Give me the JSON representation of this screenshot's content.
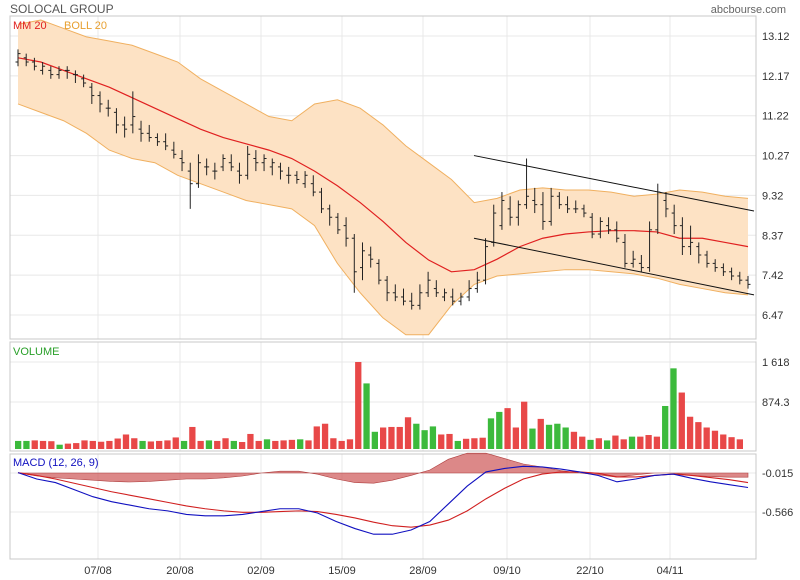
{
  "header": {
    "title": "SOLOCAL GROUP",
    "source": "abcbourse.com"
  },
  "colors": {
    "band_fill": "#fde2c4",
    "band_line": "#f0b060",
    "ma_line": "#e02020",
    "candle": "#222222",
    "channel": "#111111",
    "vol_up": "#3cba3c",
    "vol_down": "#e84848",
    "macd_line": "#1010c0",
    "signal_line": "#d02020",
    "macd_hist": "#d06060",
    "grid": "#e8e8e8",
    "border": "#c8c8c8"
  },
  "chart_data": [
    {
      "type": "line",
      "panel": "price",
      "legend": [
        "MM 20",
        "BOLL 20"
      ],
      "x_ticks": [
        "07/08",
        "20/08",
        "02/09",
        "15/09",
        "28/09",
        "09/10",
        "22/10",
        "04/11"
      ],
      "y_ticks": [
        13.12,
        12.17,
        11.22,
        10.27,
        9.32,
        8.37,
        7.42,
        6.47
      ],
      "ylim": [
        6.0,
        13.5
      ],
      "ohlc": [
        [
          12.5,
          12.8,
          12.4,
          12.7
        ],
        [
          12.6,
          12.7,
          12.4,
          12.5
        ],
        [
          12.5,
          12.6,
          12.3,
          12.4
        ],
        [
          12.3,
          12.5,
          12.2,
          12.4
        ],
        [
          12.3,
          12.4,
          12.1,
          12.2
        ],
        [
          12.2,
          12.4,
          12.1,
          12.3
        ],
        [
          12.3,
          12.4,
          12.1,
          12.3
        ],
        [
          12.2,
          12.3,
          12.0,
          12.2
        ],
        [
          12.1,
          12.2,
          11.9,
          12.0
        ],
        [
          11.9,
          12.0,
          11.5,
          11.7
        ],
        [
          11.7,
          11.8,
          11.3,
          11.5
        ],
        [
          11.4,
          11.6,
          11.2,
          11.4
        ],
        [
          11.3,
          11.4,
          10.8,
          11.0
        ],
        [
          11.0,
          11.2,
          10.7,
          10.9
        ],
        [
          11.0,
          11.8,
          10.8,
          11.2
        ],
        [
          10.9,
          11.1,
          10.6,
          10.8
        ],
        [
          10.8,
          11.0,
          10.6,
          10.7
        ],
        [
          10.7,
          10.8,
          10.5,
          10.6
        ],
        [
          10.6,
          10.8,
          10.4,
          10.5
        ],
        [
          10.4,
          10.6,
          10.2,
          10.3
        ],
        [
          10.2,
          10.4,
          9.9,
          10.1
        ],
        [
          9.9,
          10.1,
          9.0,
          9.6
        ],
        [
          9.6,
          10.3,
          9.5,
          10.1
        ],
        [
          10.0,
          10.2,
          9.8,
          10.0
        ],
        [
          9.9,
          10.1,
          9.7,
          9.9
        ],
        [
          10.0,
          10.3,
          9.9,
          10.2
        ],
        [
          10.1,
          10.3,
          9.9,
          10.0
        ],
        [
          9.9,
          10.1,
          9.6,
          9.8
        ],
        [
          9.8,
          10.5,
          9.7,
          10.3
        ],
        [
          10.2,
          10.4,
          9.9,
          10.1
        ],
        [
          10.1,
          10.3,
          9.9,
          10.2
        ],
        [
          10.0,
          10.2,
          9.8,
          10.1
        ],
        [
          10.0,
          10.1,
          9.7,
          9.9
        ],
        [
          9.8,
          10.0,
          9.6,
          9.8
        ],
        [
          9.8,
          9.9,
          9.6,
          9.7
        ],
        [
          9.6,
          9.9,
          9.5,
          9.8
        ],
        [
          9.6,
          9.8,
          9.3,
          9.4
        ],
        [
          9.4,
          9.5,
          8.9,
          9.0
        ],
        [
          9.0,
          9.1,
          8.6,
          8.8
        ],
        [
          8.8,
          8.9,
          8.4,
          8.5
        ],
        [
          8.6,
          8.8,
          8.1,
          8.3
        ],
        [
          8.3,
          8.4,
          7.0,
          7.5
        ],
        [
          7.6,
          8.2,
          7.3,
          8.0
        ],
        [
          7.9,
          8.1,
          7.6,
          7.8
        ],
        [
          7.7,
          7.8,
          7.2,
          7.3
        ],
        [
          7.3,
          7.4,
          6.8,
          7.0
        ],
        [
          7.0,
          7.2,
          6.8,
          6.9
        ],
        [
          6.9,
          7.1,
          6.7,
          6.8
        ],
        [
          6.8,
          7.0,
          6.6,
          6.7
        ],
        [
          6.7,
          7.2,
          6.6,
          7.0
        ],
        [
          7.0,
          7.5,
          6.9,
          7.3
        ],
        [
          7.1,
          7.3,
          6.9,
          7.0
        ],
        [
          6.9,
          7.1,
          6.8,
          7.0
        ],
        [
          6.9,
          7.1,
          6.7,
          6.8
        ],
        [
          6.8,
          7.0,
          6.7,
          6.9
        ],
        [
          6.9,
          7.3,
          6.8,
          7.1
        ],
        [
          7.1,
          7.5,
          7.0,
          7.3
        ],
        [
          7.3,
          8.3,
          7.2,
          8.1
        ],
        [
          8.2,
          9.1,
          8.1,
          8.9
        ],
        [
          8.6,
          9.4,
          8.5,
          9.2
        ],
        [
          9.0,
          9.3,
          8.6,
          8.8
        ],
        [
          8.8,
          9.2,
          8.6,
          9.1
        ],
        [
          9.1,
          10.2,
          9.0,
          9.3
        ],
        [
          9.2,
          9.5,
          8.9,
          9.1
        ],
        [
          9.1,
          9.4,
          8.5,
          8.7
        ],
        [
          8.7,
          9.5,
          8.6,
          9.3
        ],
        [
          9.3,
          9.4,
          9.0,
          9.1
        ],
        [
          9.1,
          9.3,
          8.9,
          9.0
        ],
        [
          9.0,
          9.2,
          8.9,
          9.0
        ],
        [
          9.0,
          9.1,
          8.8,
          8.9
        ],
        [
          8.8,
          8.9,
          8.3,
          8.4
        ],
        [
          8.4,
          8.8,
          8.3,
          8.7
        ],
        [
          8.6,
          8.8,
          8.4,
          8.5
        ],
        [
          8.5,
          8.7,
          8.2,
          8.3
        ],
        [
          8.2,
          8.4,
          7.6,
          7.7
        ],
        [
          7.7,
          8.0,
          7.6,
          7.8
        ],
        [
          7.7,
          7.9,
          7.5,
          7.6
        ],
        [
          7.6,
          8.7,
          7.5,
          8.5
        ],
        [
          8.5,
          9.6,
          8.4,
          9.4
        ],
        [
          9.2,
          9.4,
          8.8,
          9.0
        ],
        [
          8.9,
          9.1,
          8.4,
          8.6
        ],
        [
          8.6,
          8.8,
          7.9,
          8.1
        ],
        [
          8.1,
          8.6,
          7.9,
          8.2
        ],
        [
          8.1,
          8.2,
          7.7,
          7.9
        ],
        [
          7.9,
          8.0,
          7.6,
          7.7
        ],
        [
          7.7,
          7.8,
          7.5,
          7.6
        ],
        [
          7.6,
          7.7,
          7.4,
          7.5
        ],
        [
          7.5,
          7.6,
          7.3,
          7.4
        ],
        [
          7.4,
          7.5,
          7.2,
          7.3
        ],
        [
          7.3,
          7.4,
          7.1,
          7.2
        ]
      ],
      "ma20": [
        12.6,
        12.5,
        12.3,
        12.1,
        11.9,
        11.65,
        11.4,
        11.15,
        10.9,
        10.7,
        10.55,
        10.4,
        10.2,
        9.9,
        9.55,
        9.15,
        8.7,
        8.2,
        7.78,
        7.5,
        7.55,
        7.8,
        8.1,
        8.3,
        8.4,
        8.45,
        8.48,
        8.48,
        8.45,
        8.3,
        8.3,
        8.2,
        8.1
      ],
      "boll_upper": [
        13.4,
        13.5,
        13.3,
        13.1,
        13.0,
        12.9,
        12.7,
        12.5,
        12.1,
        11.8,
        11.5,
        11.2,
        11.1,
        11.5,
        11.6,
        11.4,
        11.0,
        10.5,
        10.1,
        9.7,
        9.15,
        9.25,
        9.45,
        9.5,
        9.45,
        9.45,
        9.4,
        9.3,
        9.35,
        9.45,
        9.4,
        9.3,
        9.25
      ],
      "boll_lower": [
        11.5,
        11.3,
        11.1,
        10.8,
        10.4,
        10.2,
        10.1,
        9.8,
        9.6,
        9.4,
        9.2,
        9.1,
        9.0,
        8.6,
        7.7,
        7.0,
        6.4,
        6.0,
        6.0,
        6.7,
        7.2,
        7.4,
        7.45,
        7.5,
        7.55,
        7.55,
        7.5,
        7.45,
        7.35,
        7.2,
        7.1,
        7.0,
        6.95
      ],
      "channel_lines": [
        {
          "from": [
            "09/10",
            10.27
          ],
          "to": [
            "04/11+",
            8.95
          ]
        },
        {
          "from": [
            "09/10",
            8.3
          ],
          "to": [
            "04/11+",
            6.95
          ]
        }
      ]
    },
    {
      "type": "bar",
      "panel": "volume",
      "legend": [
        "VOLUME"
      ],
      "y_ticks": [
        "1 618",
        "874.3"
      ],
      "ylim": [
        0,
        1700
      ],
      "values": [
        150,
        150,
        160,
        150,
        145,
        80,
        100,
        110,
        160,
        150,
        135,
        150,
        195,
        270,
        200,
        150,
        140,
        150,
        160,
        215,
        150,
        410,
        150,
        160,
        150,
        200,
        150,
        130,
        280,
        150,
        180,
        150,
        160,
        170,
        180,
        160,
        420,
        470,
        200,
        150,
        180,
        1618,
        1220,
        320,
        400,
        410,
        410,
        590,
        470,
        350,
        420,
        270,
        280,
        150,
        190,
        200,
        210,
        570,
        690,
        760,
        400,
        880,
        380,
        560,
        450,
        470,
        400,
        320,
        230,
        170,
        200,
        160,
        250,
        180,
        230,
        230,
        260,
        230,
        800,
        1500,
        1050,
        600,
        500,
        400,
        340,
        270,
        220,
        180
      ],
      "up": [
        1,
        1,
        0,
        0,
        0,
        1,
        0,
        0,
        0,
        0,
        0,
        0,
        0,
        0,
        0,
        1,
        0,
        0,
        0,
        0,
        1,
        0,
        0,
        1,
        0,
        0,
        1,
        0,
        0,
        0,
        1,
        0,
        0,
        0,
        1,
        0,
        0,
        0,
        0,
        0,
        0,
        0,
        1,
        1,
        0,
        0,
        0,
        0,
        1,
        1,
        1,
        0,
        0,
        1,
        0,
        0,
        0,
        1,
        1,
        0,
        0,
        0,
        1,
        0,
        1,
        1,
        1,
        0,
        0,
        1,
        0,
        1,
        0,
        0,
        1,
        0,
        0,
        0,
        1,
        1,
        0,
        0,
        0,
        0,
        0,
        0,
        0,
        0
      ]
    },
    {
      "type": "line",
      "panel": "macd",
      "legend": [
        "MACD (12, 26, 9)"
      ],
      "y_ticks": [
        "-0.015",
        "-0.566"
      ],
      "ylim": [
        -1.0,
        0.25
      ],
      "macd": [
        -0.01,
        -0.1,
        -0.15,
        -0.25,
        -0.35,
        -0.42,
        -0.47,
        -0.52,
        -0.55,
        -0.6,
        -0.62,
        -0.62,
        -0.6,
        -0.56,
        -0.52,
        -0.52,
        -0.58,
        -0.7,
        -0.8,
        -0.88,
        -0.88,
        -0.82,
        -0.7,
        -0.45,
        -0.2,
        0.0,
        0.05,
        0.08,
        0.07,
        0.04,
        0.0,
        -0.05,
        -0.14,
        -0.1,
        -0.05,
        -0.03,
        -0.09,
        -0.14,
        -0.18,
        -0.22
      ],
      "signal": [
        -0.01,
        -0.05,
        -0.1,
        -0.16,
        -0.22,
        -0.28,
        -0.33,
        -0.38,
        -0.43,
        -0.48,
        -0.52,
        -0.55,
        -0.57,
        -0.57,
        -0.56,
        -0.55,
        -0.56,
        -0.6,
        -0.65,
        -0.71,
        -0.76,
        -0.78,
        -0.75,
        -0.68,
        -0.55,
        -0.38,
        -0.23,
        -0.1,
        -0.03,
        0.0,
        0.0,
        -0.02,
        -0.07,
        -0.07,
        -0.05,
        -0.03,
        -0.05,
        -0.08,
        -0.11,
        -0.15
      ],
      "hist": [
        0.0,
        -0.05,
        -0.08,
        -0.1,
        -0.12,
        -0.14,
        -0.15,
        -0.14,
        -0.12,
        -0.1,
        -0.1,
        -0.08,
        -0.05,
        0.0,
        0.03,
        0.03,
        -0.02,
        -0.1,
        -0.16,
        -0.17,
        -0.12,
        -0.04,
        0.05,
        0.23,
        0.33,
        0.33,
        0.24,
        0.15,
        0.1,
        0.04,
        0.0,
        -0.03,
        -0.07,
        -0.03,
        0.0,
        0.0,
        -0.04,
        -0.06,
        -0.07,
        -0.07
      ]
    }
  ]
}
